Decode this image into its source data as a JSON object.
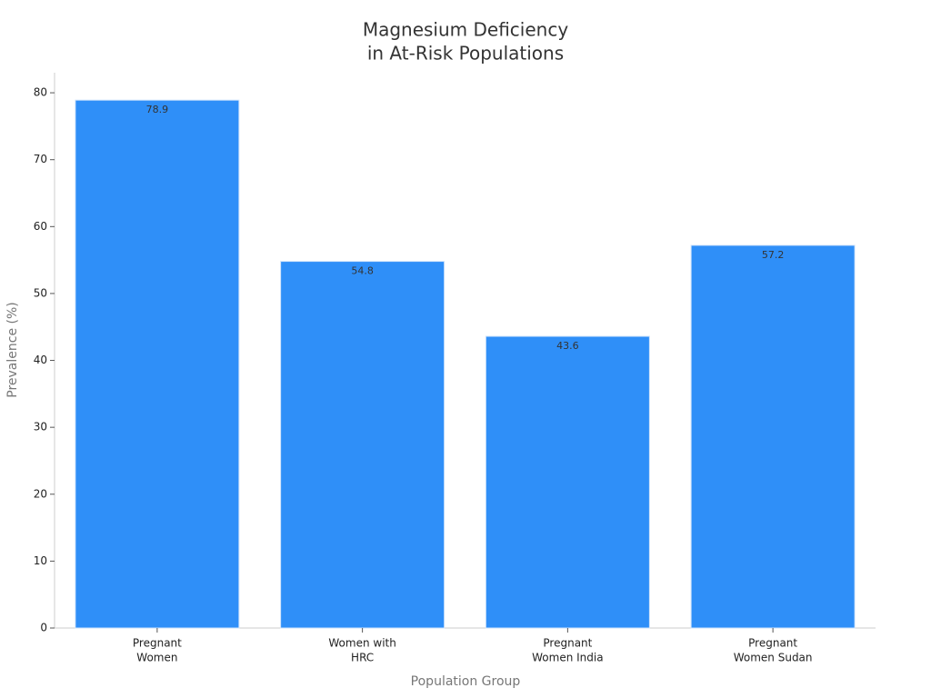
{
  "chart_data": {
    "type": "bar",
    "title": [
      "Magnesium Deficiency",
      "in At-Risk Populations"
    ],
    "x_label": "Population Group",
    "y_label": "Prevalence (%)",
    "categories": [
      [
        "Pregnant",
        "Women"
      ],
      [
        "Women with",
        "HRC"
      ],
      [
        "Pregnant",
        "Women India"
      ],
      [
        "Pregnant",
        "Women Sudan"
      ]
    ],
    "values": [
      78.9,
      54.8,
      43.6,
      57.2
    ],
    "color": "#2f8ff8",
    "ylim": [
      0,
      83
    ],
    "yticks": [
      0,
      10,
      20,
      30,
      40,
      50,
      60,
      70,
      80
    ],
    "grid": false
  }
}
